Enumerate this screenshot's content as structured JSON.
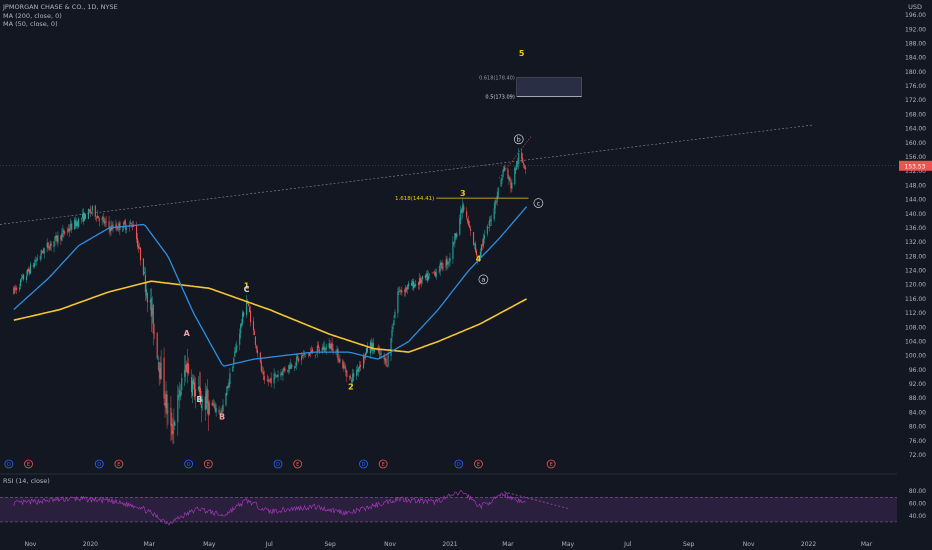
{
  "header": {
    "symbol": "JPMORGAN CHASE & CO., 1D, NYSE",
    "ma200": "MA (200, close, 0)",
    "ma50": "MA (50, close, 0)",
    "currency": "USD",
    "rsi": "RSI (14, close)"
  },
  "chart_data": {
    "type": "candlestick",
    "price_axis": {
      "ylim": [
        72,
        198
      ],
      "ticks": [
        "196.00",
        "192.00",
        "188.00",
        "184.00",
        "180.00",
        "176.00",
        "172.00",
        "168.00",
        "164.00",
        "160.00",
        "156.00",
        "152.00",
        "148.00",
        "144.00",
        "140.00",
        "136.00",
        "132.00",
        "128.00",
        "124.00",
        "120.00",
        "116.00",
        "112.00",
        "108.00",
        "104.00",
        "100.00",
        "96.00",
        "92.00",
        "88.00",
        "84.00",
        "80.00",
        "76.00",
        "72.00"
      ],
      "last_price": "153.53"
    },
    "time_axis": {
      "ticks": [
        "Nov",
        "2020",
        "Mar",
        "May",
        "Jul",
        "Sep",
        "Nov",
        "2021",
        "Mar",
        "May",
        "Jul",
        "Sep",
        "Nov",
        "2022",
        "Mar"
      ]
    },
    "rsi_axis": {
      "ylim": [
        25,
        90
      ],
      "ticks": [
        "80.00",
        "60.00",
        "40.00"
      ],
      "upper_band": 70,
      "lower_band": 30
    },
    "series": {
      "price_anchors": [
        [
          "2019-10-15",
          118
        ],
        [
          "2019-11-15",
          130
        ],
        [
          "2019-12-20",
          138
        ],
        [
          "2020-01-03",
          141
        ],
        [
          "2020-01-20",
          136
        ],
        [
          "2020-02-14",
          137
        ],
        [
          "2020-02-27",
          120
        ],
        [
          "2020-03-09",
          102
        ],
        [
          "2020-03-23",
          78
        ],
        [
          "2020-04-08",
          98
        ],
        [
          "2020-04-15",
          91
        ],
        [
          "2020-04-21",
          88
        ],
        [
          "2020-05-14",
          84
        ],
        [
          "2020-06-08",
          116
        ],
        [
          "2020-06-26",
          92
        ],
        [
          "2020-08-05",
          100
        ],
        [
          "2020-09-03",
          103
        ],
        [
          "2020-09-22",
          93
        ],
        [
          "2020-10-12",
          103
        ],
        [
          "2020-10-29",
          98
        ],
        [
          "2020-11-09",
          118
        ],
        [
          "2020-12-10",
          122
        ],
        [
          "2020-12-31",
          127
        ],
        [
          "2021-01-14",
          142
        ],
        [
          "2021-01-29",
          128
        ],
        [
          "2021-02-10",
          137
        ],
        [
          "2021-02-25",
          153
        ],
        [
          "2021-03-04",
          148
        ],
        [
          "2021-03-12",
          156
        ],
        [
          "2021-03-19",
          153.5
        ]
      ],
      "ma50_anchors": [
        [
          "2019-10-15",
          113
        ],
        [
          "2019-11-20",
          122
        ],
        [
          "2019-12-20",
          131
        ],
        [
          "2020-01-20",
          136
        ],
        [
          "2020-02-25",
          137
        ],
        [
          "2020-03-20",
          128
        ],
        [
          "2020-04-15",
          112
        ],
        [
          "2020-05-15",
          97
        ],
        [
          "2020-06-15",
          99
        ],
        [
          "2020-07-15",
          100
        ],
        [
          "2020-08-15",
          101
        ],
        [
          "2020-09-20",
          101
        ],
        [
          "2020-10-20",
          99
        ],
        [
          "2020-11-20",
          104
        ],
        [
          "2020-12-20",
          113
        ],
        [
          "2021-01-20",
          124
        ],
        [
          "2021-02-20",
          133
        ],
        [
          "2021-03-20",
          142
        ]
      ],
      "ma200_anchors": [
        [
          "2019-10-15",
          110
        ],
        [
          "2019-12-01",
          113
        ],
        [
          "2020-01-20",
          118
        ],
        [
          "2020-03-03",
          121
        ],
        [
          "2020-05-01",
          119
        ],
        [
          "2020-07-01",
          113
        ],
        [
          "2020-09-01",
          106
        ],
        [
          "2020-10-15",
          102
        ],
        [
          "2020-11-20",
          101
        ],
        [
          "2020-12-20",
          104
        ],
        [
          "2021-02-01",
          109
        ],
        [
          "2021-03-20",
          116
        ]
      ],
      "rsi_anchors": [
        [
          "2019-10-15",
          60
        ],
        [
          "2019-12-15",
          68
        ],
        [
          "2020-01-15",
          65
        ],
        [
          "2020-02-20",
          55
        ],
        [
          "2020-03-20",
          28
        ],
        [
          "2020-04-20",
          52
        ],
        [
          "2020-05-15",
          40
        ],
        [
          "2020-06-08",
          65
        ],
        [
          "2020-07-01",
          47
        ],
        [
          "2020-08-15",
          55
        ],
        [
          "2020-09-20",
          44
        ],
        [
          "2020-10-15",
          56
        ],
        [
          "2020-11-10",
          68
        ],
        [
          "2020-12-15",
          62
        ],
        [
          "2021-01-14",
          79
        ],
        [
          "2021-02-01",
          55
        ],
        [
          "2021-02-25",
          75
        ],
        [
          "2021-03-19",
          60
        ]
      ]
    },
    "annotations": {
      "wave_labels": [
        {
          "text": "1",
          "date": "2020-06-08",
          "price": 119,
          "color": "#f5c816"
        },
        {
          "text": "2",
          "date": "2020-09-22",
          "price": 90.5,
          "color": "#f5c816"
        },
        {
          "text": "3",
          "date": "2021-01-14",
          "price": 145,
          "color": "#f5c816"
        },
        {
          "text": "4",
          "date": "2021-01-30",
          "price": 126.5,
          "color": "#f5c816"
        },
        {
          "text": "5",
          "date": "2021-03-15",
          "price": 184.5,
          "color": "#f5c816"
        },
        {
          "text": "A",
          "date": "2020-04-08",
          "price": 105.5,
          "color": "#f0a0a0"
        },
        {
          "text": "B",
          "date": "2020-05-14",
          "price": 82,
          "color": "#f0a0a0"
        },
        {
          "text": "C",
          "date": "2020-06-08",
          "price": 118,
          "color": "#d1d4dc"
        },
        {
          "text": "B",
          "date": "2020-04-21",
          "price": 87,
          "color": "#d1d4dc"
        }
      ],
      "circled_labels": [
        {
          "text": "a",
          "date": "2021-02-04",
          "price": 121.5
        },
        {
          "text": "b",
          "date": "2021-03-12",
          "price": 161
        },
        {
          "text": "c",
          "date": "2021-04-01",
          "price": 143
        }
      ],
      "fibonacci": [
        {
          "label": "1.618(144.41)",
          "price": 144.41
        },
        {
          "label": "0.618(178.40)",
          "price": 178.4
        },
        {
          "label": "0.5(173.09)",
          "price": 173.09
        }
      ],
      "event_letters": [
        "D",
        "E",
        "D",
        "E",
        "D",
        "E",
        "D",
        "E",
        "D",
        "E",
        "D",
        "E",
        "E"
      ]
    }
  }
}
